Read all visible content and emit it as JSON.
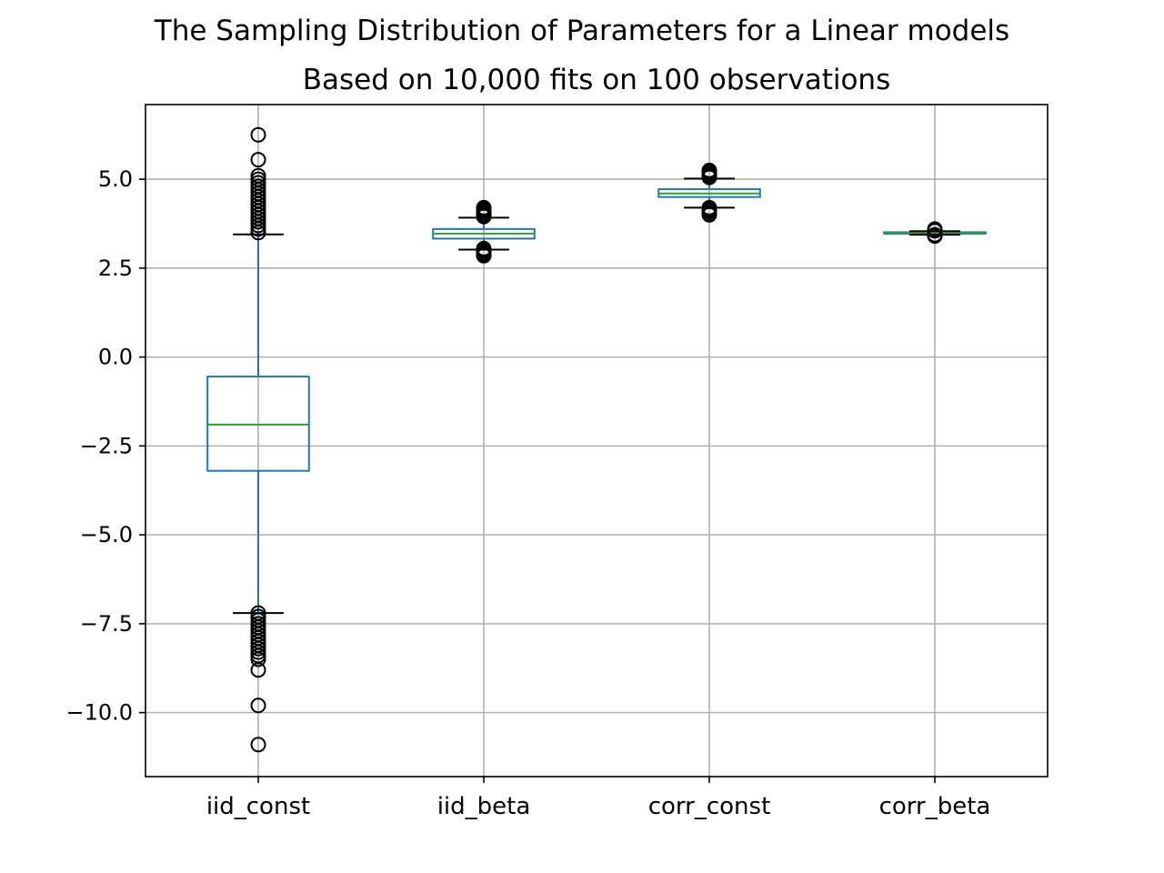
{
  "chart_data": {
    "type": "box",
    "title": "The Sampling Distribution of Parameters for a Linear models",
    "subtitle": "Based on 10,000 fits on 100 observations",
    "xlabel": "",
    "ylabel": "",
    "ylim": [
      -11.8,
      7.1
    ],
    "yticks": [
      5.0,
      2.5,
      0.0,
      -2.5,
      -5.0,
      -7.5,
      -10.0
    ],
    "ytick_labels": [
      "5.0",
      "2.5",
      "0.0",
      "−2.5",
      "−5.0",
      "−7.5",
      "−10.0"
    ],
    "grid": true,
    "categories": [
      "iid_const",
      "iid_beta",
      "corr_const",
      "corr_beta"
    ],
    "boxes": [
      {
        "q1": -3.2,
        "median": -1.9,
        "q3": -0.55,
        "whisker_low": -7.2,
        "whisker_high": 3.45,
        "outliers": [
          6.25,
          5.55,
          5.1,
          5.0,
          4.9,
          4.8,
          4.7,
          4.6,
          4.5,
          4.4,
          4.3,
          4.2,
          4.1,
          4.0,
          3.9,
          3.8,
          3.7,
          3.6,
          3.5,
          -7.2,
          -7.3,
          -7.4,
          -7.5,
          -7.6,
          -7.7,
          -7.8,
          -7.9,
          -8.0,
          -8.1,
          -8.2,
          -8.3,
          -8.4,
          -8.5,
          -8.8,
          -9.8,
          -10.9
        ]
      },
      {
        "q1": 3.33,
        "median": 3.47,
        "q3": 3.6,
        "whisker_low": 3.02,
        "whisker_high": 3.92,
        "outliers": [
          4.2,
          4.15,
          4.1,
          4.05,
          4.0,
          3.95,
          3.05,
          3.0,
          2.95,
          2.9,
          2.85
        ]
      },
      {
        "q1": 4.5,
        "median": 4.6,
        "q3": 4.72,
        "whisker_low": 4.2,
        "whisker_high": 5.02,
        "outliers": [
          5.25,
          5.2,
          5.15,
          5.1,
          5.05,
          4.2,
          4.15,
          4.1,
          4.05,
          4.0
        ]
      },
      {
        "q1": 3.47,
        "median": 3.49,
        "q3": 3.51,
        "whisker_low": 3.44,
        "whisker_high": 3.54,
        "outliers": [
          3.6,
          3.57,
          3.55,
          3.44,
          3.42,
          3.4
        ]
      }
    ],
    "colors": {
      "box": "#1f77b4",
      "median": "#2ca02c",
      "whisker_cap": "#000000",
      "grid": "#b0b0b0",
      "axes": "#000000"
    }
  }
}
